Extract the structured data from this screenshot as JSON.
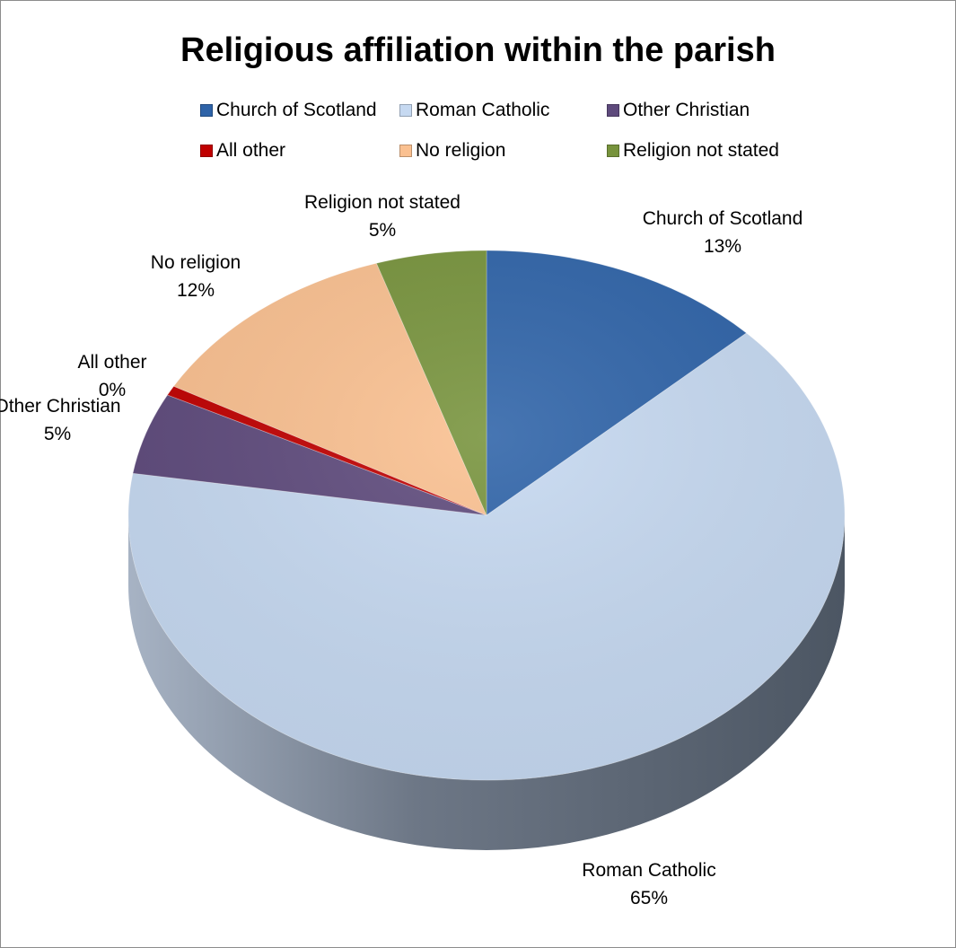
{
  "chart_data": {
    "type": "pie",
    "title": "Religious affiliation within the parish",
    "legend_position": "top",
    "categories": [
      "Church of Scotland",
      "Roman Catholic",
      "Other Christian",
      "All other",
      "No religion",
      "Religion not stated"
    ],
    "values": [
      13,
      65,
      5,
      0,
      12,
      5
    ],
    "data_labels": [
      {
        "name": "Church of Scotland",
        "pct": "13%"
      },
      {
        "name": "Roman Catholic",
        "pct": "65%"
      },
      {
        "name": "Other Christian",
        "pct": "5%"
      },
      {
        "name": "All other",
        "pct": "0%"
      },
      {
        "name": "No religion",
        "pct": "12%"
      },
      {
        "name": "Religion not stated",
        "pct": "5%"
      }
    ],
    "colors": [
      "#2e63a8",
      "#c6d9f1",
      "#5e4a7c",
      "#c00000",
      "#fac090",
      "#77933c"
    ]
  }
}
